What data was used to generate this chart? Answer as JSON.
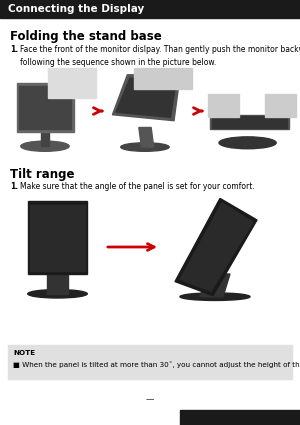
{
  "page_bg": "#ffffff",
  "header_bg": "#1a1a1a",
  "header_text": "Connecting the Display",
  "header_text_color": "#ffffff",
  "header_font_size": 7.5,
  "section1_title": "Folding the stand base",
  "section1_title_fontsize": 8.5,
  "step1_num": "1.",
  "step1_text": "Face the front of the monitor dislpay. Than gently push the monitor backwards,\nfollowing the sequence shown in the picture below.",
  "step1_fontsize": 5.5,
  "section2_title": "Tilt range",
  "section2_title_fontsize": 8.5,
  "step2_num": "1.",
  "step2_text": "Make sure that the angle of the panel is set for your comfort.",
  "step2_fontsize": 5.5,
  "note_bg": "#e0e0e0",
  "note_title": "NOTE",
  "note_text": "■ When the panel is tilted at more than 30˚, you cannot adjust the height of the monitor.",
  "note_fontsize": 5.2,
  "arrow_color": "#cc0000",
  "footer_bar_bg": "#1a1a1a"
}
